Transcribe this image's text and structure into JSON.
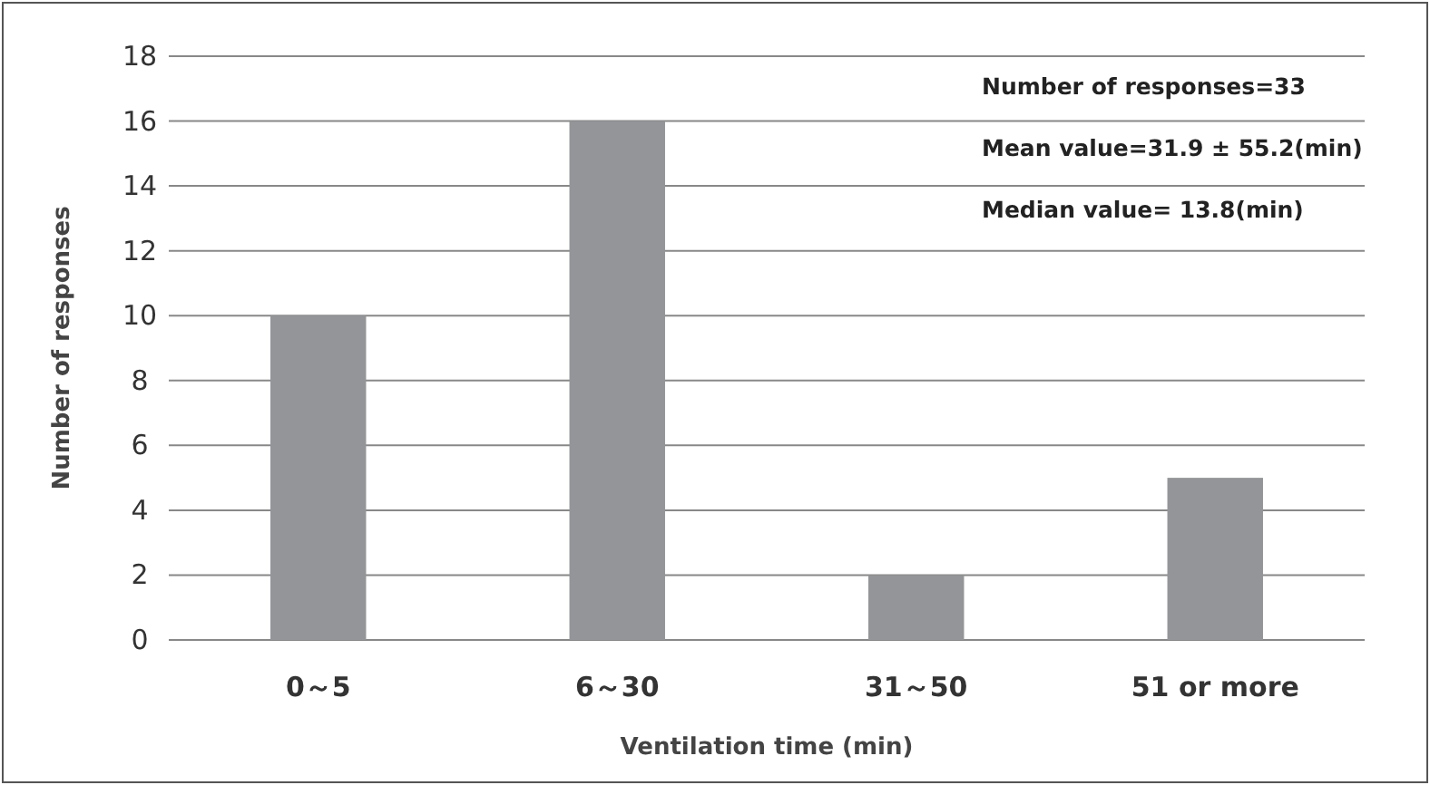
{
  "chart_data": {
    "type": "bar",
    "xlabel": "Ventilation time (min)",
    "ylabel": "Number of responses",
    "categories": [
      "0～5",
      "6～30",
      "31～50",
      "51 or more"
    ],
    "values": [
      10,
      16,
      2,
      5
    ],
    "color": "#939598",
    "ylim": [
      0,
      18
    ],
    "yticks": [
      0,
      2,
      4,
      6,
      8,
      10,
      12,
      14,
      16,
      18
    ],
    "grid": "y",
    "annotations": [
      "Number of responses=33",
      "Mean value=31.9 ± 55.2(min)",
      "Median value= 13.8(min)"
    ]
  }
}
